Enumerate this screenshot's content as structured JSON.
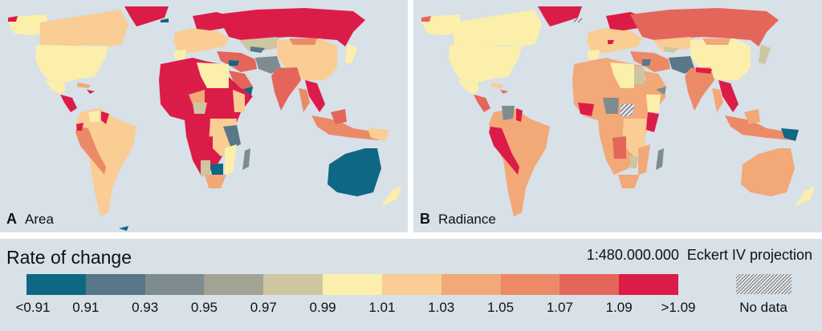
{
  "panels": [
    {
      "letter": "A",
      "title": "Area"
    },
    {
      "letter": "B",
      "title": "Radiance"
    }
  ],
  "legend": {
    "title": "Rate of change",
    "scale": "1:480.000.000",
    "projection": "Eckert IV projection",
    "no_data_label": "No data",
    "colors": [
      "#0e6883",
      "#587788",
      "#7f8c8f",
      "#a2a394",
      "#cdc6a0",
      "#fbefab",
      "#f9cd93",
      "#f2a877",
      "#ec8a68",
      "#e4665a",
      "#dc1c48"
    ],
    "ticks": [
      "<0.91",
      "0.91",
      "0.93",
      "0.95",
      "0.97",
      "0.99",
      "1.01",
      "1.03",
      "1.05",
      "1.07",
      "1.09",
      ">1.09"
    ]
  },
  "chart_data": {
    "type": "choropleth",
    "title": "Rate of change",
    "projection": "Eckert IV",
    "scale": "1:480.000.000",
    "panels": [
      "A Area",
      "B Radiance"
    ],
    "legend_classes": [
      {
        "label": "<0.91",
        "color": "#0e6883"
      },
      {
        "label": "0.91-0.93",
        "color": "#587788"
      },
      {
        "label": "0.93-0.95",
        "color": "#7f8c8f"
      },
      {
        "label": "0.95-0.97",
        "color": "#a2a394"
      },
      {
        "label": "0.97-0.99",
        "color": "#cdc6a0"
      },
      {
        "label": "0.99-1.01",
        "color": "#fbefab"
      },
      {
        "label": "1.01-1.03",
        "color": "#f9cd93"
      },
      {
        "label": "1.03-1.05",
        "color": "#f2a877"
      },
      {
        "label": "1.05-1.07",
        "color": "#ec8a68"
      },
      {
        "label": "1.07-1.09",
        "color": "#e4665a"
      },
      {
        "label": ">1.09",
        "color": "#dc1c48"
      },
      {
        "label": "No data",
        "color": "hatched"
      }
    ],
    "regions_area": {
      "Greenland": ">1.09",
      "Russia": ">1.09",
      "Canada": "1.03-1.05",
      "USA": "0.99-1.01",
      "Central America": ">1.09",
      "Brazil": "1.01-1.03",
      "Peru/Bolivia": "1.05-1.07",
      "West Africa": ">1.09",
      "Central Africa": ">1.09",
      "Angola": ">1.09",
      "Botswana": "<0.91",
      "Madagascar": "0.93-0.95",
      "Australia": "<0.91",
      "China": "1.01-1.03",
      "India": "1.07-1.09",
      "Kazakhstan": "0.97-0.99",
      "Afghanistan/Pakistan": "0.95-0.97",
      "Yemen": "<0.91",
      "Indonesia": "1.05-1.07",
      "New Zealand": "0.99-1.01",
      "Libya/Egypt": "0.99-1.01"
    },
    "regions_radiance": {
      "Greenland": ">1.09",
      "Scandinavia": ">1.09",
      "Russia": "1.07-1.09",
      "Canada/USA": "0.99-1.01",
      "Peru/Bolivia": ">1.09",
      "Brazil": "1.03-1.05",
      "Nigeria": "no data",
      "Ghana/Ivory Coast": ">1.09",
      "China": "0.99-1.01",
      "India": "1.05-1.07",
      "Vietnam": ">1.09",
      "Papua New Guinea": "<0.91",
      "Australia": "1.03-1.05",
      "Afghanistan": "0.91-0.93",
      "Madagascar": "0.93-0.95",
      "Kenya": ">1.09",
      "New Zealand": "0.99-1.01"
    }
  }
}
